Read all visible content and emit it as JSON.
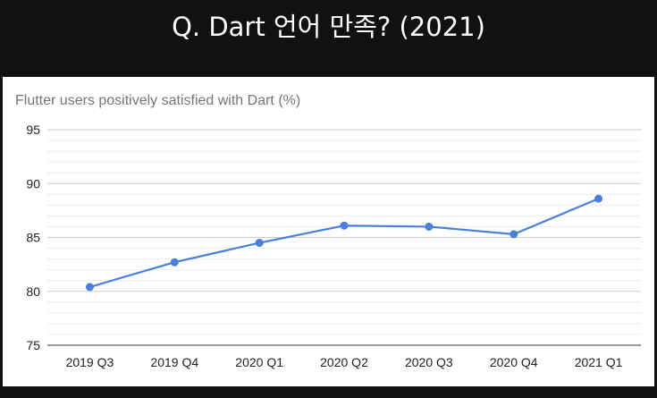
{
  "banner": {
    "title": "Q. Dart 언어 만족? (2021)"
  },
  "chart_data": {
    "type": "line",
    "title": "Flutter users positively satisfied with Dart (%)",
    "categories": [
      "2019 Q3",
      "2019 Q4",
      "2020 Q1",
      "2020 Q2",
      "2020 Q3",
      "2020 Q4",
      "2021 Q1"
    ],
    "series": [
      {
        "values": [
          80.4,
          82.7,
          84.5,
          86.1,
          86.0,
          85.3,
          88.6
        ]
      }
    ],
    "ylim": [
      75,
      95
    ],
    "yticks": [
      75,
      80,
      85,
      90,
      95
    ],
    "grid": true,
    "minor_grid": true,
    "legend": "none",
    "line_color": "#4a7fdc"
  }
}
